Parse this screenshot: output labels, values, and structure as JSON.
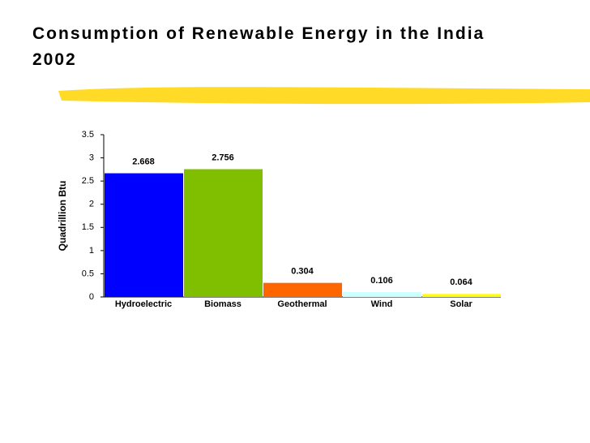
{
  "chart_data": {
    "type": "bar",
    "title": "Consumption of Renewable Energy in the India 2002",
    "ylabel": "Quadrillion Btu",
    "categories": [
      "Hydroelectric",
      "Biomass",
      "Geothermal",
      "Wind",
      "Solar"
    ],
    "values": [
      2.668,
      2.756,
      0.304,
      0.106,
      0.064
    ],
    "colors": [
      "#0000ff",
      "#7fbf00",
      "#ff6600",
      "#ccffff",
      "#ffff00"
    ],
    "ylim": [
      0,
      3.5
    ],
    "yticks": [
      0,
      0.5,
      1,
      1.5,
      2,
      2.5,
      3,
      3.5
    ],
    "grid": false
  }
}
